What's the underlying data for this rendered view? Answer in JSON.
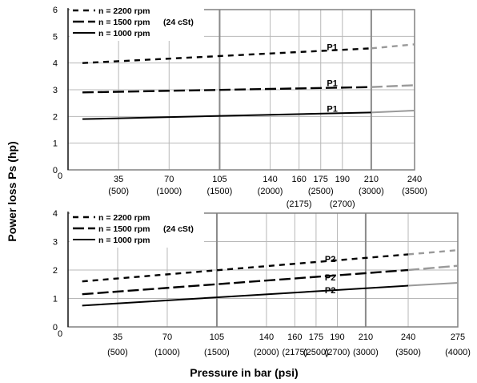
{
  "axis_labels": {
    "y": "Power loss Ps (hp)",
    "x": "Pressure in bar (psi)"
  },
  "chart_data": [
    {
      "type": "line",
      "name": "top",
      "ylim": [
        0,
        6
      ],
      "yticks": [
        "0",
        "1",
        "2",
        "3",
        "4",
        "5",
        "6"
      ],
      "x_range": [
        0,
        240
      ],
      "bar_ticks": [
        {
          "value": 35,
          "bar": "35",
          "psi": "(500)"
        },
        {
          "value": 70,
          "bar": "70",
          "psi": "(1000)"
        },
        {
          "value": 105,
          "bar": "105",
          "psi": "(1500)"
        },
        {
          "value": 140,
          "bar": "140",
          "psi": "(2000)"
        },
        {
          "value": 160,
          "bar": "160",
          "psi": "(2175)"
        },
        {
          "value": 175,
          "bar": "175",
          "psi": "(2500)"
        },
        {
          "value": 190,
          "bar": "190",
          "psi": "(2700)"
        },
        {
          "value": 210,
          "bar": "210",
          "psi": "(3000)"
        },
        {
          "value": 240,
          "bar": "240",
          "psi": "(3500)"
        }
      ],
      "x_zero_label": "0",
      "legend": {
        "entries": [
          "n = 2200 rpm",
          "n = 1500 rpm",
          "n = 1000 rpm"
        ],
        "viscosity": "(24 cSt)"
      },
      "series": [
        {
          "name": "n = 2200 rpm",
          "x": [
            10,
            210,
            240
          ],
          "y": [
            4.0,
            4.55,
            4.7
          ]
        },
        {
          "name": "n = 1500 rpm",
          "x": [
            10,
            210,
            240
          ],
          "y": [
            2.9,
            3.1,
            3.17
          ]
        },
        {
          "name": "n = 1000 rpm",
          "x": [
            10,
            210,
            240
          ],
          "y": [
            1.9,
            2.15,
            2.22
          ]
        }
      ],
      "annotations": [
        {
          "text": "P1",
          "x": 183,
          "y": 4.6
        },
        {
          "text": "P1",
          "x": 183,
          "y": 3.25
        },
        {
          "text": "P1",
          "x": 183,
          "y": 2.3
        }
      ]
    },
    {
      "type": "line",
      "name": "bottom",
      "ylim": [
        0,
        4
      ],
      "yticks": [
        "0",
        "1",
        "2",
        "3",
        "4"
      ],
      "x_range": [
        0,
        275
      ],
      "bar_ticks": [
        {
          "value": 35,
          "bar": "35",
          "psi": "(500)"
        },
        {
          "value": 70,
          "bar": "70",
          "psi": "(1000)"
        },
        {
          "value": 105,
          "bar": "105",
          "psi": "(1500)"
        },
        {
          "value": 140,
          "bar": "140",
          "psi": "(2000)"
        },
        {
          "value": 160,
          "bar": "160",
          "psi": "(2175)"
        },
        {
          "value": 175,
          "bar": "175",
          "psi": "(2500)"
        },
        {
          "value": 190,
          "bar": "190",
          "psi": "(2700)"
        },
        {
          "value": 210,
          "bar": "210",
          "psi": "(3000)"
        },
        {
          "value": 240,
          "bar": "240",
          "psi": "(3500)"
        },
        {
          "value": 275,
          "bar": "275",
          "psi": "(4000)"
        }
      ],
      "x_zero_label": "0",
      "legend": {
        "entries": [
          "n = 2200 rpm",
          "n = 1500 rpm",
          "n = 1000 rpm"
        ],
        "viscosity": "(24 cSt)"
      },
      "series": [
        {
          "name": "n = 2200 rpm",
          "x": [
            10,
            240,
            275
          ],
          "y": [
            1.6,
            2.55,
            2.7
          ]
        },
        {
          "name": "n = 1500 rpm",
          "x": [
            10,
            240,
            275
          ],
          "y": [
            1.15,
            2.0,
            2.15
          ]
        },
        {
          "name": "n = 1000 rpm",
          "x": [
            10,
            240,
            275
          ],
          "y": [
            0.75,
            1.45,
            1.55
          ]
        }
      ],
      "annotations": [
        {
          "text": "P2",
          "x": 185,
          "y": 2.4
        },
        {
          "text": "P2",
          "x": 185,
          "y": 1.75
        },
        {
          "text": "P2",
          "x": 185,
          "y": 1.3
        }
      ]
    }
  ]
}
